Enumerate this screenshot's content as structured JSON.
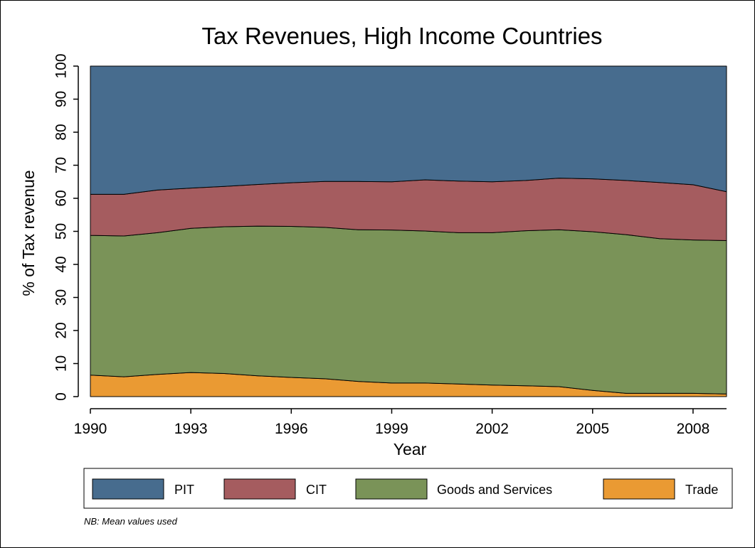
{
  "chart_data": {
    "type": "area",
    "stacked": true,
    "title": "Tax Revenues, High Income Countries",
    "xlabel": "Year",
    "ylabel": "% of Tax revenue",
    "note": "NB: Mean values used",
    "xlim": [
      1990,
      2009
    ],
    "ylim": [
      0,
      100
    ],
    "xticks": [
      "1990",
      "1993",
      "1996",
      "1999",
      "2002",
      "2005",
      "2008"
    ],
    "yticks": [
      "0",
      "10",
      "20",
      "30",
      "40",
      "50",
      "60",
      "70",
      "80",
      "90",
      "100"
    ],
    "grid": false,
    "legend_position": "bottom",
    "x": [
      1990,
      1991,
      1992,
      1993,
      1994,
      1995,
      1996,
      1997,
      1998,
      1999,
      2000,
      2001,
      2002,
      2003,
      2004,
      2005,
      2006,
      2007,
      2008,
      2009
    ],
    "series": [
      {
        "name": "Trade",
        "color": "#ea9a33",
        "values": [
          6.5,
          6.0,
          6.7,
          7.3,
          7.0,
          6.3,
          5.8,
          5.4,
          4.6,
          4.1,
          4.1,
          3.8,
          3.5,
          3.3,
          3.0,
          1.9,
          1.0,
          1.0,
          1.0,
          0.8
        ]
      },
      {
        "name": "Goods and Services",
        "color": "#7a9358",
        "values": [
          42.3,
          42.6,
          42.9,
          43.6,
          44.4,
          45.3,
          45.7,
          45.8,
          45.9,
          46.3,
          46.0,
          45.8,
          46.1,
          46.9,
          47.5,
          48.0,
          48.0,
          46.8,
          46.4,
          46.4
        ]
      },
      {
        "name": "CIT",
        "color": "#a55c5f",
        "values": [
          12.4,
          12.6,
          12.9,
          12.2,
          12.2,
          12.6,
          13.2,
          13.9,
          14.6,
          14.6,
          15.5,
          15.6,
          15.4,
          15.2,
          15.6,
          16.0,
          16.4,
          17.0,
          16.7,
          14.8
        ]
      },
      {
        "name": "PIT",
        "color": "#476c8e",
        "values": [
          38.8,
          38.8,
          37.5,
          36.9,
          36.4,
          35.8,
          35.3,
          34.9,
          34.9,
          35.0,
          34.4,
          34.8,
          35.0,
          34.6,
          33.9,
          34.1,
          34.6,
          35.2,
          35.9,
          38.0
        ]
      }
    ],
    "legend_order": [
      "PIT",
      "CIT",
      "Goods and Services",
      "Trade"
    ]
  }
}
